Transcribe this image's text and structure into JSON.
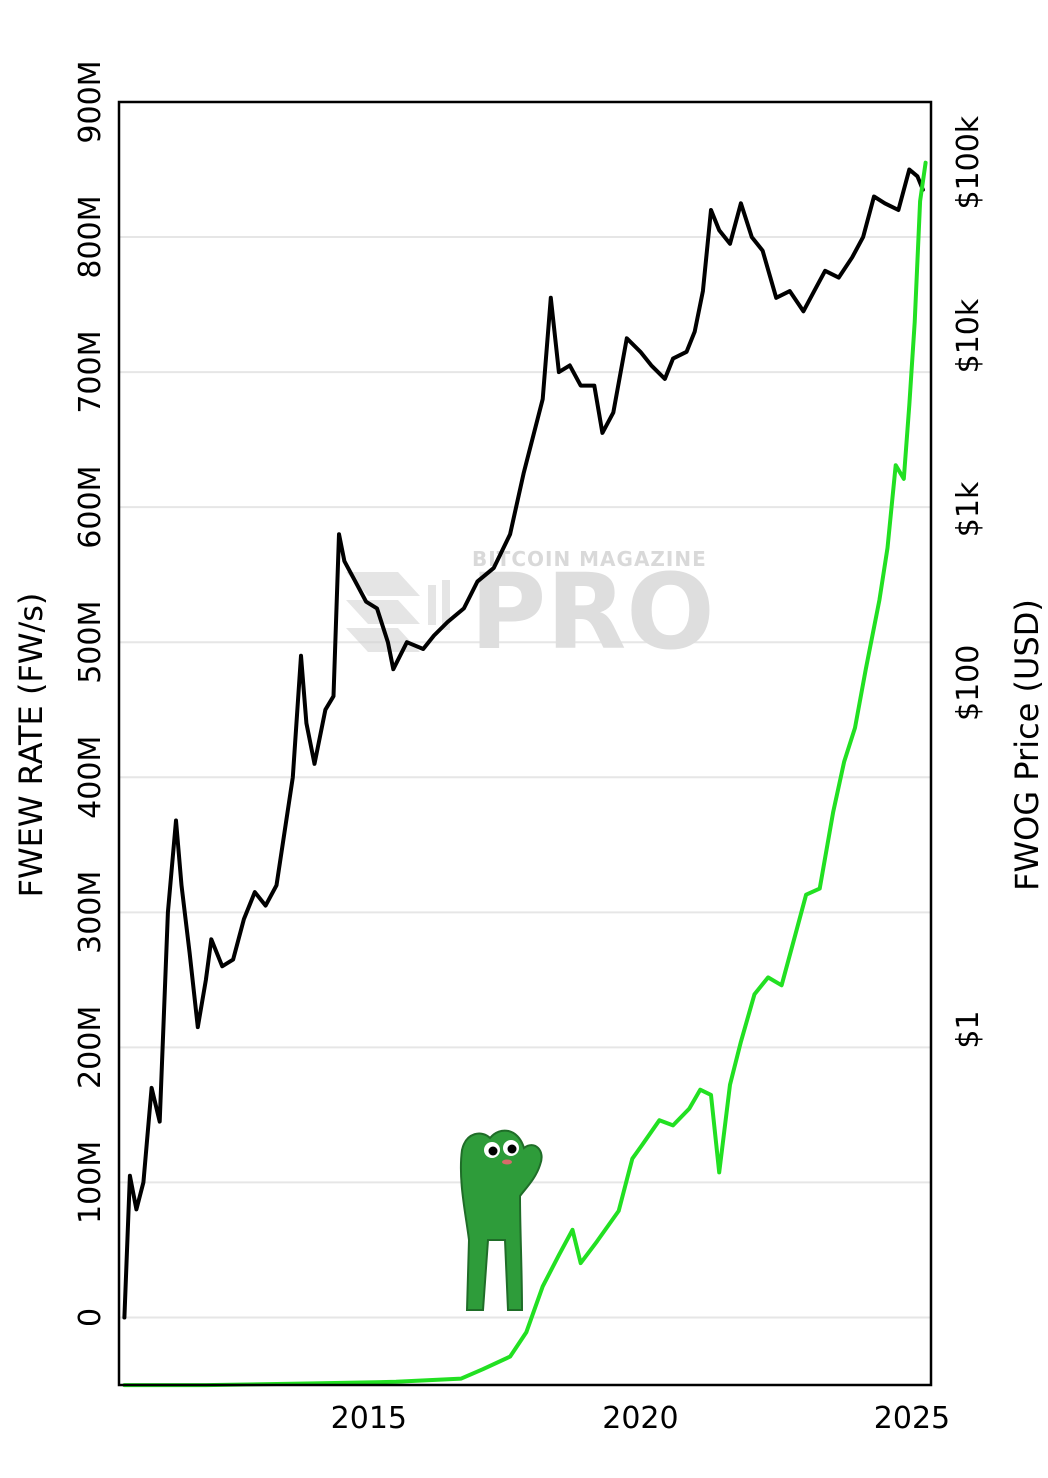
{
  "chart_data": {
    "type": "line",
    "x_axis": {
      "ticks": [
        2015,
        2020,
        2025
      ],
      "tick_labels": [
        "2015",
        "2020",
        "2025"
      ],
      "range": [
        2010.4,
        2025.35
      ]
    },
    "y_left": {
      "title": "FWEW RATE (FW/s)",
      "tick_values": [
        0,
        100000000,
        200000000,
        300000000,
        400000000,
        500000000,
        600000000,
        700000000,
        800000000,
        900000000
      ],
      "tick_labels": [
        "0",
        "100M",
        "200M",
        "300M",
        "400M",
        "500M",
        "600M",
        "700M",
        "800M",
        "900M"
      ],
      "range": [
        -50000000,
        900000000
      ]
    },
    "y_right": {
      "title": "FWOG Price (USD)",
      "scale": "log",
      "tick_values": [
        1,
        100,
        1000,
        10000,
        100000
      ],
      "tick_labels": [
        "$1",
        "$100",
        "$1k",
        "$10k",
        "$100k"
      ],
      "range_exp": [
        -2.05,
        5.35
      ]
    },
    "grid": true,
    "watermark": {
      "line1": "BITCOIN MAGAZINE",
      "line2": "PRO"
    },
    "series": [
      {
        "axis": "left",
        "color": "#000000",
        "points": [
          [
            2010.5,
            0
          ],
          [
            2010.6,
            105000000
          ],
          [
            2010.72,
            80000000
          ],
          [
            2010.85,
            100000000
          ],
          [
            2011.0,
            170000000
          ],
          [
            2011.15,
            145000000
          ],
          [
            2011.3,
            300000000
          ],
          [
            2011.45,
            368000000
          ],
          [
            2011.55,
            320000000
          ],
          [
            2011.7,
            270000000
          ],
          [
            2011.85,
            215000000
          ],
          [
            2012.0,
            250000000
          ],
          [
            2012.1,
            280000000
          ],
          [
            2012.3,
            260000000
          ],
          [
            2012.5,
            265000000
          ],
          [
            2012.7,
            295000000
          ],
          [
            2012.9,
            315000000
          ],
          [
            2013.1,
            305000000
          ],
          [
            2013.3,
            320000000
          ],
          [
            2013.6,
            400000000
          ],
          [
            2013.75,
            490000000
          ],
          [
            2013.85,
            440000000
          ],
          [
            2014.0,
            410000000
          ],
          [
            2014.2,
            450000000
          ],
          [
            2014.35,
            460000000
          ],
          [
            2014.45,
            580000000
          ],
          [
            2014.55,
            560000000
          ],
          [
            2014.75,
            545000000
          ],
          [
            2014.95,
            530000000
          ],
          [
            2015.15,
            525000000
          ],
          [
            2015.35,
            500000000
          ],
          [
            2015.45,
            480000000
          ],
          [
            2015.7,
            500000000
          ],
          [
            2016.0,
            495000000
          ],
          [
            2016.2,
            505000000
          ],
          [
            2016.45,
            515000000
          ],
          [
            2016.75,
            525000000
          ],
          [
            2017.0,
            545000000
          ],
          [
            2017.3,
            555000000
          ],
          [
            2017.6,
            580000000
          ],
          [
            2017.85,
            625000000
          ],
          [
            2018.2,
            680000000
          ],
          [
            2018.35,
            755000000
          ],
          [
            2018.5,
            700000000
          ],
          [
            2018.7,
            705000000
          ],
          [
            2018.9,
            690000000
          ],
          [
            2019.15,
            690000000
          ],
          [
            2019.3,
            655000000
          ],
          [
            2019.5,
            670000000
          ],
          [
            2019.75,
            725000000
          ],
          [
            2020.0,
            715000000
          ],
          [
            2020.2,
            705000000
          ],
          [
            2020.45,
            695000000
          ],
          [
            2020.6,
            710000000
          ],
          [
            2020.85,
            715000000
          ],
          [
            2021.0,
            730000000
          ],
          [
            2021.15,
            760000000
          ],
          [
            2021.3,
            820000000
          ],
          [
            2021.45,
            805000000
          ],
          [
            2021.65,
            795000000
          ],
          [
            2021.85,
            825000000
          ],
          [
            2022.05,
            800000000
          ],
          [
            2022.25,
            790000000
          ],
          [
            2022.5,
            755000000
          ],
          [
            2022.75,
            760000000
          ],
          [
            2023.0,
            745000000
          ],
          [
            2023.2,
            760000000
          ],
          [
            2023.4,
            775000000
          ],
          [
            2023.65,
            770000000
          ],
          [
            2023.9,
            785000000
          ],
          [
            2024.1,
            800000000
          ],
          [
            2024.3,
            830000000
          ],
          [
            2024.5,
            825000000
          ],
          [
            2024.75,
            820000000
          ],
          [
            2024.95,
            850000000
          ],
          [
            2025.1,
            845000000
          ],
          [
            2025.2,
            835000000
          ]
        ]
      },
      {
        "axis": "right",
        "color": "#22e022",
        "points": [
          [
            2010.5,
            0.0089
          ],
          [
            2012.0,
            0.0089
          ],
          [
            2014.0,
            0.0091
          ],
          [
            2015.5,
            0.0093
          ],
          [
            2016.7,
            0.0097
          ],
          [
            2017.1,
            0.011
          ],
          [
            2017.6,
            0.013
          ],
          [
            2017.9,
            0.018
          ],
          [
            2018.2,
            0.033
          ],
          [
            2018.5,
            0.05
          ],
          [
            2018.75,
            0.07
          ],
          [
            2018.9,
            0.045
          ],
          [
            2019.2,
            0.06
          ],
          [
            2019.6,
            0.09
          ],
          [
            2019.85,
            0.18
          ],
          [
            2020.05,
            0.22
          ],
          [
            2020.35,
            0.3
          ],
          [
            2020.6,
            0.28
          ],
          [
            2020.9,
            0.35
          ],
          [
            2021.1,
            0.45
          ],
          [
            2021.3,
            0.42
          ],
          [
            2021.45,
            0.15
          ],
          [
            2021.65,
            0.48
          ],
          [
            2021.85,
            0.85
          ],
          [
            2022.1,
            1.6
          ],
          [
            2022.35,
            2.0
          ],
          [
            2022.6,
            1.8
          ],
          [
            2022.85,
            3.5
          ],
          [
            2023.05,
            6.0
          ],
          [
            2023.3,
            6.5
          ],
          [
            2023.55,
            18.0
          ],
          [
            2023.75,
            35.0
          ],
          [
            2023.95,
            55.0
          ],
          [
            2024.15,
            120.0
          ],
          [
            2024.4,
            300.0
          ],
          [
            2024.55,
            600.0
          ],
          [
            2024.7,
            1800.0
          ],
          [
            2024.85,
            1500.0
          ],
          [
            2024.95,
            4000.0
          ],
          [
            2025.05,
            12000.0
          ],
          [
            2025.15,
            60000.0
          ],
          [
            2025.25,
            100000.0
          ]
        ]
      }
    ]
  }
}
